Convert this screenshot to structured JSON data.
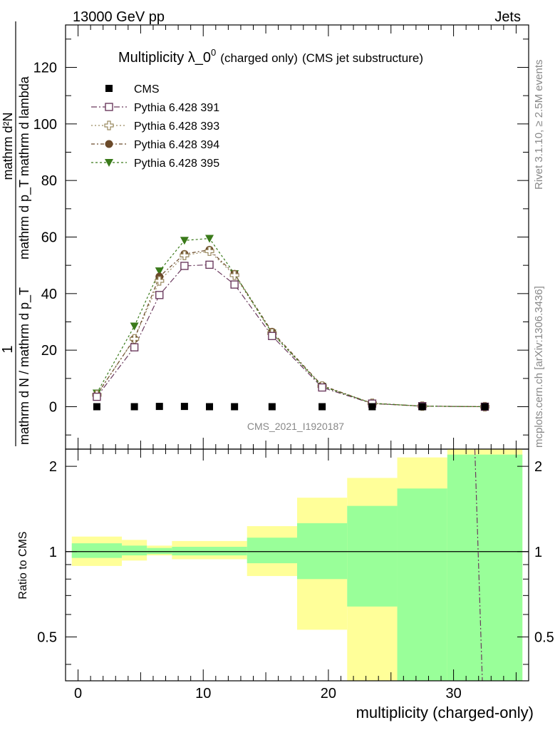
{
  "header": {
    "left": "13000 GeV pp",
    "right": "Jets"
  },
  "side_labels": {
    "rivet": "Rivet 3.1.10, ≥ 2.5M events",
    "mcplots": "mcplots.cern.ch [arXiv:1306.3436]"
  },
  "colors": {
    "cms": "#000000",
    "p391": "#6b3a5e",
    "p393": "#9a8a60",
    "p394": "#6b4a2a",
    "p395": "#3a7a1a",
    "band_yellow": "#ffff99",
    "band_green": "#99ff99"
  },
  "chart_data": [
    {
      "type": "scatter",
      "title": "Multiplicity λ_0",
      "title_sup": "0",
      "title_suffix_1": "(charged only)",
      "title_suffix_2": "(CMS jet substructure)",
      "ylabel_num": "mathrm d²N",
      "ylabel_den": "mathrm d p_T mathrm d lambda",
      "ylabel_prefix_num": "1",
      "ylabel_prefix_den": "mathrm d N / mathrm d p_T",
      "ylim": [
        -15,
        135
      ],
      "xlim": [
        -1,
        36
      ],
      "yticks": [
        0,
        20,
        40,
        60,
        80,
        100,
        120
      ],
      "watermark": "CMS_2021_I1920187",
      "legend_placement": "top-left",
      "series": [
        {
          "name": "CMS",
          "marker": "square-filled",
          "color": "#000000",
          "x": [
            1.5,
            4.5,
            6.5,
            8.5,
            10.5,
            12.5,
            15.5,
            19.5,
            23.5,
            27.5,
            32.5
          ],
          "y": [
            0,
            0,
            0.1,
            0.1,
            0,
            0,
            0,
            0,
            0,
            0,
            0
          ]
        },
        {
          "name": "Pythia 6.428 391",
          "marker": "square-open",
          "color": "#6b3a5e",
          "x": [
            1.5,
            4.5,
            6.5,
            8.5,
            10.5,
            12.5,
            15.5,
            19.5,
            23.5,
            27.5,
            32.5
          ],
          "y": [
            3.5,
            21,
            39.5,
            49.8,
            50.2,
            43.2,
            25,
            6.8,
            1.1,
            0.2,
            0
          ]
        },
        {
          "name": "Pythia 6.428 393",
          "marker": "cross-open",
          "color": "#9a8a60",
          "x": [
            1.5,
            4.5,
            6.5,
            8.5,
            10.5,
            12.5,
            15.5,
            19.5,
            23.5,
            27.5,
            32.5
          ],
          "y": [
            4.2,
            24,
            44.5,
            53.5,
            55,
            46.5,
            26,
            7.3,
            1.2,
            0.2,
            0
          ]
        },
        {
          "name": "Pythia 6.428 394",
          "marker": "circle-filled",
          "color": "#6b4a2a",
          "x": [
            1.5,
            4.5,
            6.5,
            8.5,
            10.5,
            12.5,
            15.5,
            19.5,
            23.5,
            27.5,
            32.5
          ],
          "y": [
            4.2,
            24,
            46,
            54,
            55.5,
            47,
            26.5,
            7.5,
            1.2,
            0.2,
            0
          ]
        },
        {
          "name": "Pythia 6.428 395",
          "marker": "triangle-down-filled",
          "color": "#3a7a1a",
          "x": [
            1.5,
            4.5,
            6.5,
            8.5,
            10.5,
            12.5,
            15.5,
            19.5,
            23.5,
            27.5,
            32.5
          ],
          "y": [
            4.8,
            28.5,
            48,
            58.8,
            59.5,
            47,
            26,
            7.2,
            1.2,
            0.2,
            0
          ]
        }
      ]
    },
    {
      "type": "area",
      "ylabel": "Ratio to CMS",
      "xlabel": "multiplicity (charged-only)",
      "ylim": [
        0.35,
        2.3
      ],
      "xlim": [
        -1,
        36
      ],
      "scale": "log",
      "xticks": [
        0,
        10,
        20,
        30
      ],
      "yticks": [
        0.5,
        1,
        2
      ],
      "bands": [
        {
          "x0": -0.5,
          "x1": 3.5,
          "yellow": [
            0.89,
            1.13
          ],
          "green": [
            0.95,
            1.07
          ]
        },
        {
          "x0": 3.5,
          "x1": 5.5,
          "yellow": [
            0.93,
            1.1
          ],
          "green": [
            0.97,
            1.05
          ]
        },
        {
          "x0": 5.5,
          "x1": 7.5,
          "yellow": [
            0.97,
            1.05
          ],
          "green": [
            0.98,
            1.03
          ]
        },
        {
          "x0": 7.5,
          "x1": 13.5,
          "yellow": [
            0.94,
            1.09
          ],
          "green": [
            0.97,
            1.04
          ]
        },
        {
          "x0": 13.5,
          "x1": 17.5,
          "yellow": [
            0.82,
            1.23
          ],
          "green": [
            0.91,
            1.12
          ]
        },
        {
          "x0": 17.5,
          "x1": 21.5,
          "yellow": [
            0.53,
            1.55
          ],
          "green": [
            0.8,
            1.26
          ]
        },
        {
          "x0": 21.5,
          "x1": 25.5,
          "yellow": [
            0.3,
            1.82
          ],
          "green": [
            0.64,
            1.45
          ]
        },
        {
          "x0": 25.5,
          "x1": 29.5,
          "yellow": [
            0.3,
            2.15
          ],
          "green": [
            0.3,
            1.67
          ]
        },
        {
          "x0": 29.5,
          "x1": 35.5,
          "yellow": [
            0.3,
            2.6
          ],
          "green": [
            0.3,
            2.2
          ]
        }
      ],
      "reference_line": 1,
      "trail_line": {
        "x": [
          31.7,
          32.3
        ],
        "y": [
          2.5,
          0.3
        ]
      }
    }
  ]
}
